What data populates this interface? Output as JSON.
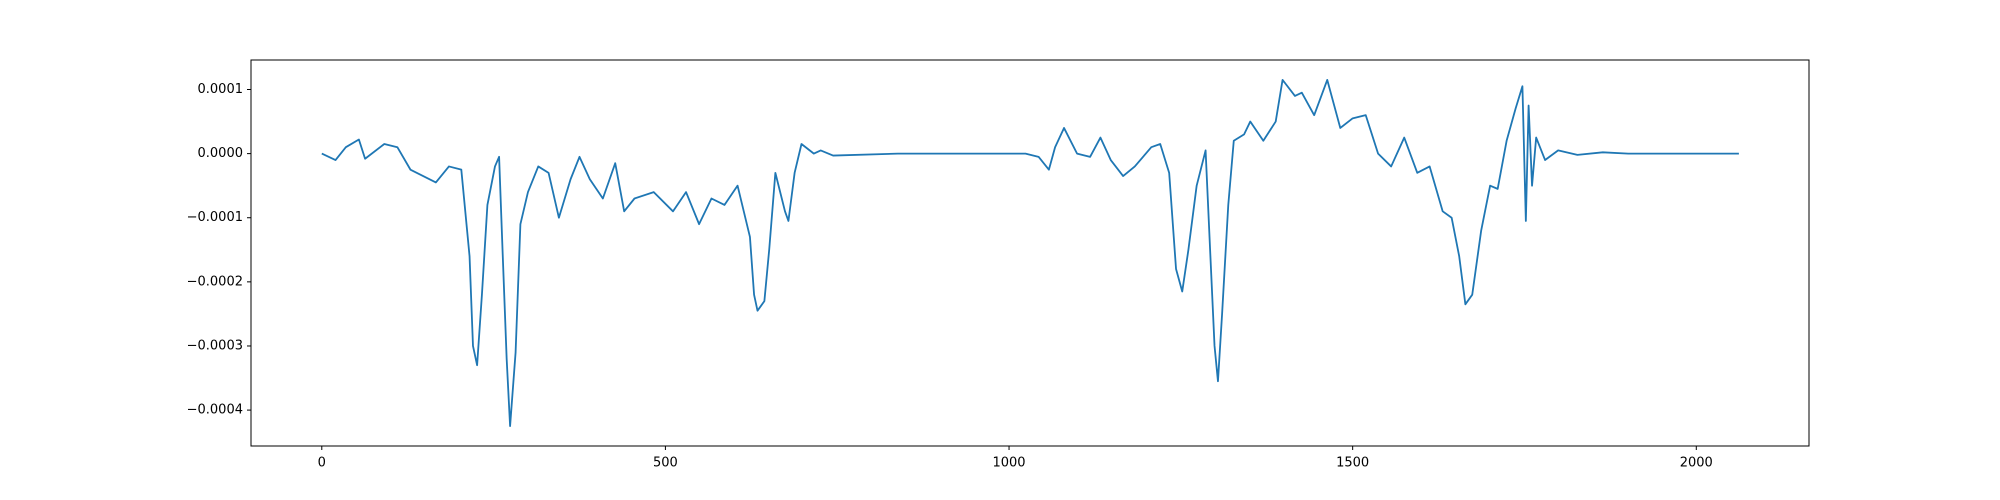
{
  "chart_data": {
    "type": "line",
    "x": [
      0,
      20,
      35,
      54,
      63,
      91,
      110,
      129,
      166,
      185,
      203,
      215,
      220,
      226,
      233,
      241,
      252,
      258,
      263,
      269,
      274,
      282,
      289,
      300,
      315,
      330,
      345,
      362,
      375,
      390,
      409,
      427,
      440,
      455,
      483,
      511,
      530,
      549,
      567,
      586,
      605,
      614,
      623,
      629,
      634,
      644,
      651,
      660,
      674,
      679,
      688,
      698,
      716,
      726,
      744,
      838,
      1024,
      1043,
      1058,
      1067,
      1080,
      1099,
      1118,
      1133,
      1148,
      1166,
      1183,
      1207,
      1220,
      1233,
      1243,
      1252,
      1261,
      1273,
      1286,
      1293,
      1299,
      1304,
      1310,
      1319,
      1327,
      1342,
      1351,
      1370,
      1388,
      1398,
      1416,
      1426,
      1444,
      1463,
      1482,
      1500,
      1519,
      1537,
      1556,
      1575,
      1594,
      1612,
      1631,
      1644,
      1655,
      1664,
      1674,
      1687,
      1700,
      1711,
      1724,
      1737,
      1747,
      1752,
      1756,
      1761,
      1767,
      1780,
      1799,
      1827,
      1864,
      1901,
      2062
    ],
    "series": [
      {
        "color": "#1f77b4",
        "values": [
          0,
          -1e-05,
          1e-05,
          2.2e-05,
          -8e-06,
          1.5e-05,
          1e-05,
          -2.5e-05,
          -4.5e-05,
          -2e-05,
          -2.5e-05,
          -0.00016,
          -0.0003,
          -0.00033,
          -0.00022,
          -8e-05,
          -2e-05,
          -5e-06,
          -0.00015,
          -0.00032,
          -0.000425,
          -0.00031,
          -0.00011,
          -6e-05,
          -2e-05,
          -3e-05,
          -0.0001,
          -4e-05,
          -5e-06,
          -4e-05,
          -7e-05,
          -1.5e-05,
          -9e-05,
          -7e-05,
          -6e-05,
          -9e-05,
          -6e-05,
          -0.00011,
          -7e-05,
          -8e-05,
          -5e-05,
          -9e-05,
          -0.00013,
          -0.00022,
          -0.000245,
          -0.00023,
          -0.00015,
          -3e-05,
          -9e-05,
          -0.000105,
          -3e-05,
          1.5e-05,
          0,
          5e-06,
          -3e-06,
          0,
          0,
          -5e-06,
          -2.5e-05,
          1e-05,
          4e-05,
          0,
          -5e-06,
          2.5e-05,
          -1e-05,
          -3.5e-05,
          -2e-05,
          1e-05,
          1.5e-05,
          -3e-05,
          -0.00018,
          -0.000215,
          -0.00015,
          -5e-05,
          5e-06,
          -0.00016,
          -0.0003,
          -0.000355,
          -0.00025,
          -8e-05,
          2e-05,
          3e-05,
          5e-05,
          2e-05,
          5e-05,
          0.000115,
          9e-05,
          9.5e-05,
          6e-05,
          0.000115,
          4e-05,
          5.5e-05,
          6e-05,
          0,
          -2e-05,
          2.5e-05,
          -3e-05,
          -2e-05,
          -9e-05,
          -0.0001,
          -0.00016,
          -0.000235,
          -0.00022,
          -0.00012,
          -5e-05,
          -5.5e-05,
          2e-05,
          7e-05,
          0.000105,
          -0.000105,
          7.5e-05,
          -5e-05,
          2.5e-05,
          -1e-05,
          5e-06,
          -2e-06,
          2e-06,
          0,
          0
        ]
      }
    ],
    "xlim": [
      -103,
      2164
    ],
    "ylim": [
      -0.000456,
      0.000146
    ],
    "xticks": [
      0,
      500,
      1000,
      1500,
      2000
    ],
    "yticks": [
      {
        "value": -0.0004,
        "label": "−0.0004"
      },
      {
        "value": -0.0003,
        "label": "−0.0003"
      },
      {
        "value": -0.0002,
        "label": "−0.0002"
      },
      {
        "value": -0.0001,
        "label": "−0.0001"
      },
      {
        "value": 0,
        "label": "0.0000"
      },
      {
        "value": 0.0001,
        "label": "0.0001"
      }
    ]
  }
}
